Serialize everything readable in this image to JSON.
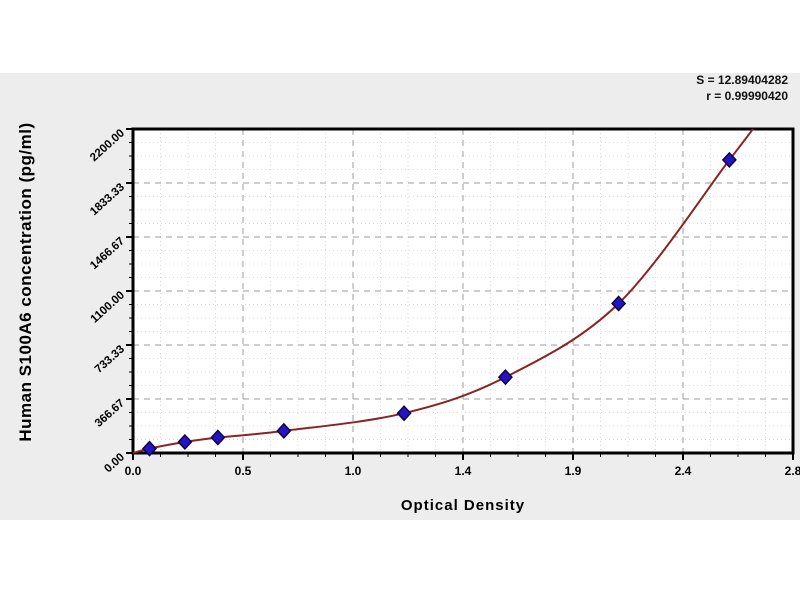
{
  "panel": {
    "background": "#ededed"
  },
  "stats": {
    "s_label": "S = 12.89404282",
    "r_label": "r = 0.99990420"
  },
  "chart_data": {
    "type": "scatter",
    "title": "",
    "xlabel": "Optical Density",
    "ylabel": "Human S100A6 concentration (pg/ml)",
    "xlim": [
      0,
      2.8
    ],
    "ylim": [
      0,
      2200
    ],
    "x_tick_labels": [
      "0.0",
      "0.5",
      "1.0",
      "1.4",
      "1.9",
      "2.4",
      "2.8"
    ],
    "y_tick_labels": [
      "0.00",
      "366.67",
      "733.33",
      "1100.00",
      "1466.67",
      "1833.33",
      "2200.00"
    ],
    "grid": {
      "major": "dashed",
      "minor": "dotted",
      "minor_per_major": 4
    },
    "legend": "none",
    "annotations": [
      "S = 12.89404282",
      "r = 0.99990420"
    ],
    "series": [
      {
        "name": "standard-points",
        "type": "scatter",
        "marker": "diamond",
        "color": "#2513c9",
        "points": [
          [
            0.07,
            30
          ],
          [
            0.22,
            75
          ],
          [
            0.36,
            105
          ],
          [
            0.64,
            150
          ],
          [
            1.15,
            270
          ],
          [
            1.58,
            515
          ],
          [
            2.06,
            1015
          ],
          [
            2.53,
            1990
          ]
        ]
      },
      {
        "name": "fitted-curve",
        "type": "line",
        "color": "#8b2323",
        "points": [
          [
            0.0,
            0
          ],
          [
            0.07,
            30
          ],
          [
            0.22,
            75
          ],
          [
            0.36,
            105
          ],
          [
            0.64,
            150
          ],
          [
            1.15,
            270
          ],
          [
            1.58,
            515
          ],
          [
            2.06,
            1015
          ],
          [
            2.53,
            1990
          ],
          [
            2.63,
            2200
          ]
        ]
      }
    ]
  },
  "colors": {
    "frame": "#000000",
    "major_grid": "#9c9c9c",
    "minor_grid": "#dcdcdc",
    "curve": "#8b2323",
    "marker": "#2513c9",
    "marker_edge": "#10063f",
    "panel": "#ededed",
    "plot_bg": "#ffffff",
    "text": "#000000"
  }
}
